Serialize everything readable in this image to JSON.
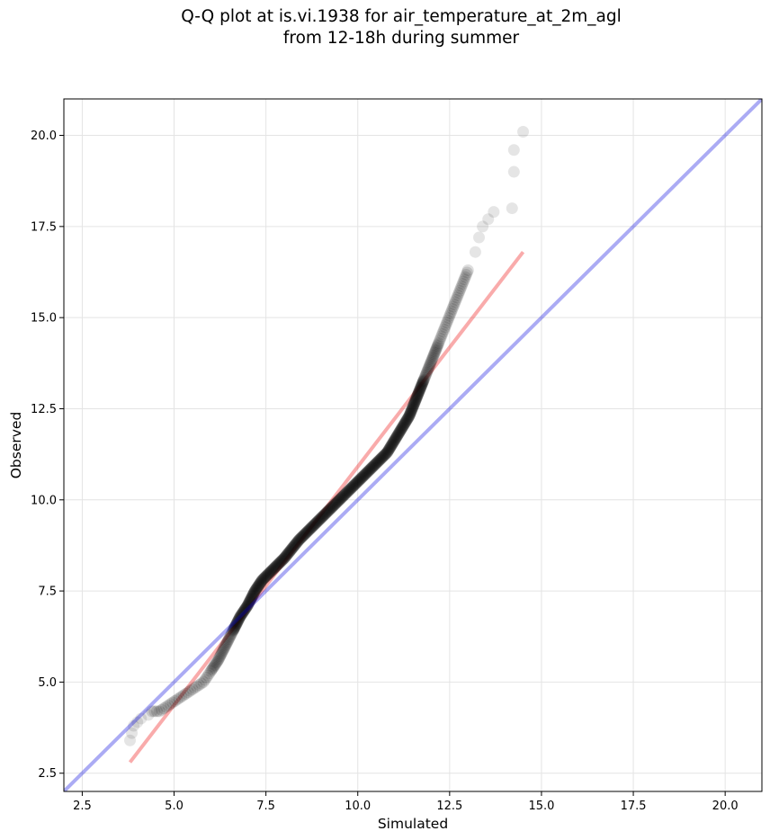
{
  "chart_data": {
    "type": "scatter",
    "title": "Q-Q plot at is.vi.1938 for air_temperature_at_2m_agl",
    "subtitle": "from 12-18h during summer",
    "xlabel": "Simulated",
    "ylabel": "Observed",
    "xlim": [
      2.0,
      21.0
    ],
    "ylim": [
      2.0,
      21.0
    ],
    "x_ticks": [
      "2.5",
      "5.0",
      "7.5",
      "10.0",
      "12.5",
      "15.0",
      "17.5",
      "20.0"
    ],
    "y_ticks": [
      "2.5",
      "5.0",
      "7.5",
      "10.0",
      "12.5",
      "15.0",
      "17.5",
      "20.0"
    ],
    "grid": true,
    "point_color": "#000000",
    "identity_line": {
      "from": [
        2.0,
        2.0
      ],
      "to": [
        21.0,
        21.0
      ],
      "color": "#0000dd"
    },
    "fit_line": {
      "from": [
        3.8,
        2.8
      ],
      "to": [
        14.5,
        16.8
      ],
      "color": "#ee2222"
    },
    "outlier_points": [
      {
        "x": 3.8,
        "y": 3.4
      },
      {
        "x": 3.85,
        "y": 3.6
      },
      {
        "x": 3.9,
        "y": 3.8
      },
      {
        "x": 4.0,
        "y": 3.9
      },
      {
        "x": 4.1,
        "y": 4.0
      },
      {
        "x": 4.3,
        "y": 4.1
      },
      {
        "x": 13.2,
        "y": 16.8
      },
      {
        "x": 13.3,
        "y": 17.2
      },
      {
        "x": 13.4,
        "y": 17.5
      },
      {
        "x": 13.55,
        "y": 17.7
      },
      {
        "x": 13.7,
        "y": 17.9
      },
      {
        "x": 14.2,
        "y": 18.0
      },
      {
        "x": 14.25,
        "y": 19.0
      },
      {
        "x": 14.25,
        "y": 19.6
      },
      {
        "x": 14.5,
        "y": 20.1
      }
    ],
    "quantile_curve": [
      [
        4.4,
        4.2
      ],
      [
        4.6,
        4.2
      ],
      [
        4.9,
        4.4
      ],
      [
        5.2,
        4.6
      ],
      [
        5.5,
        4.8
      ],
      [
        5.8,
        5.0
      ],
      [
        6.0,
        5.3
      ],
      [
        6.2,
        5.6
      ],
      [
        6.4,
        6.0
      ],
      [
        6.6,
        6.4
      ],
      [
        6.8,
        6.8
      ],
      [
        7.0,
        7.1
      ],
      [
        7.2,
        7.5
      ],
      [
        7.4,
        7.8
      ],
      [
        7.7,
        8.1
      ],
      [
        8.0,
        8.4
      ],
      [
        8.4,
        8.9
      ],
      [
        8.8,
        9.3
      ],
      [
        9.2,
        9.7
      ],
      [
        9.6,
        10.1
      ],
      [
        10.0,
        10.5
      ],
      [
        10.4,
        10.9
      ],
      [
        10.8,
        11.3
      ],
      [
        11.1,
        11.8
      ],
      [
        11.4,
        12.3
      ],
      [
        11.6,
        12.8
      ],
      [
        11.8,
        13.3
      ],
      [
        12.0,
        13.8
      ],
      [
        12.2,
        14.3
      ],
      [
        12.4,
        14.8
      ],
      [
        12.6,
        15.3
      ],
      [
        12.8,
        15.8
      ],
      [
        13.0,
        16.3
      ]
    ]
  }
}
